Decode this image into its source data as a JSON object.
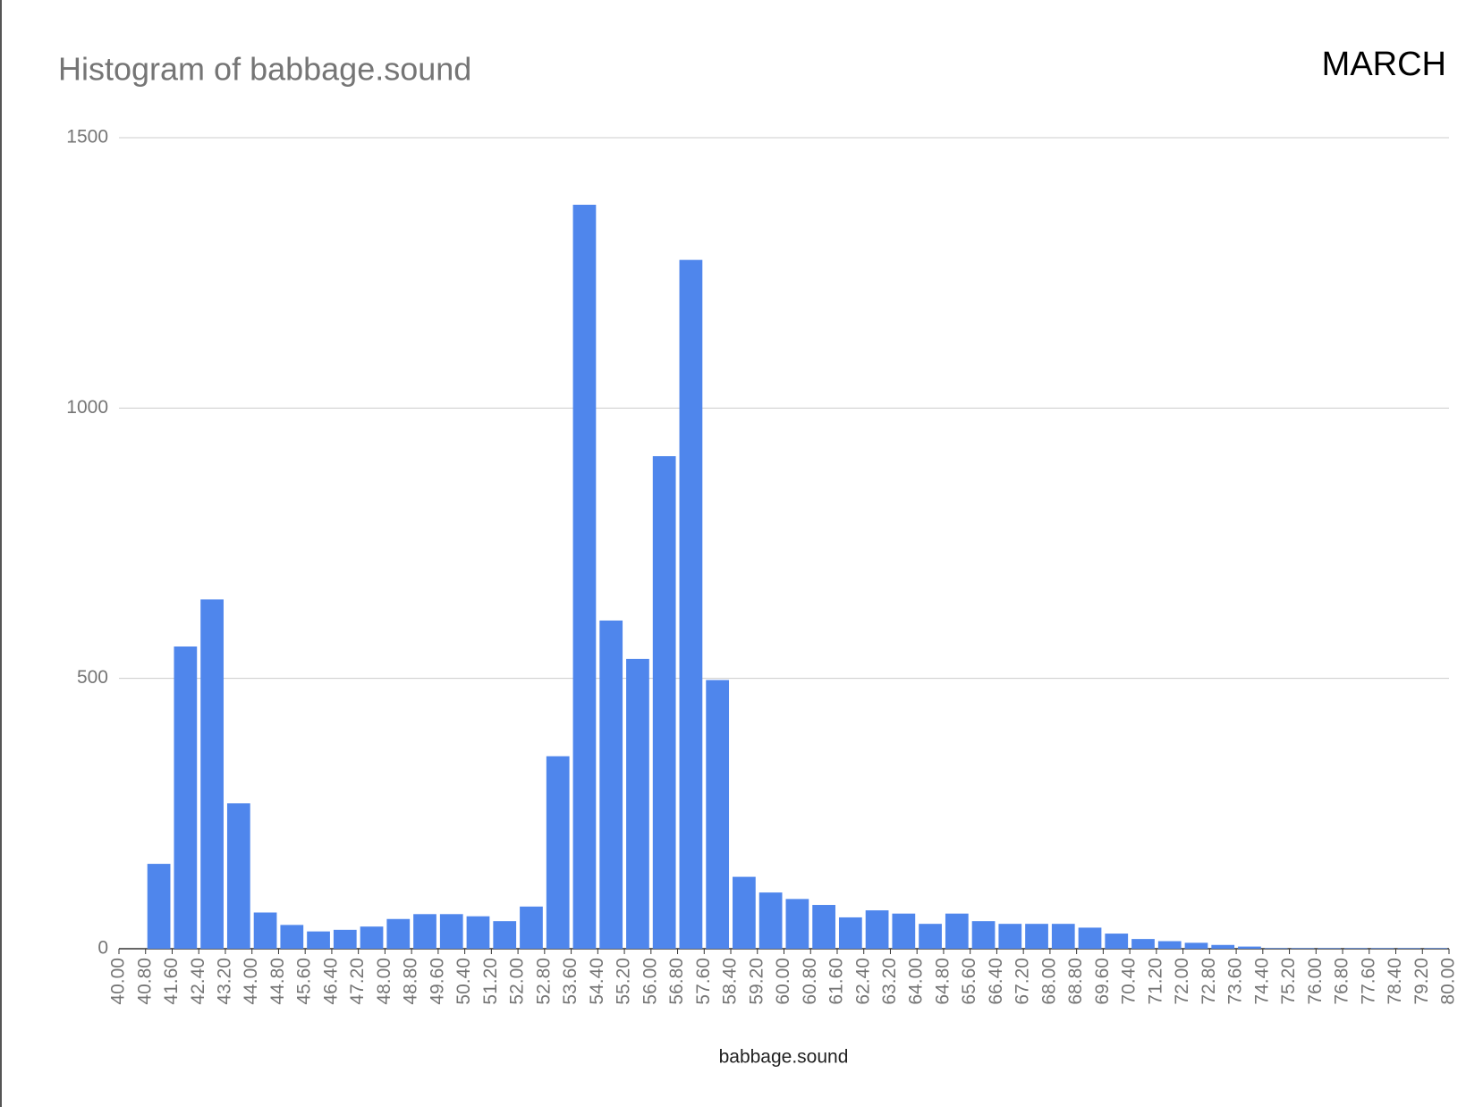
{
  "chart_data": {
    "type": "histogram",
    "title": "Histogram of babbage.sound",
    "subtitle": "MARCH",
    "x_label": "babbage.sound",
    "color": "#4f86ec",
    "grid": true,
    "bins": [
      40.0,
      40.8,
      41.6,
      42.4,
      43.2,
      44.0,
      44.8,
      45.6,
      46.4,
      47.2,
      48.0,
      48.8,
      49.6,
      50.4,
      51.2,
      52.0,
      52.8,
      53.6,
      54.4,
      55.2,
      56.0,
      56.8,
      57.6,
      58.4,
      59.2,
      60.0,
      60.8,
      61.6,
      62.4,
      63.2,
      64.0,
      64.8,
      65.6,
      66.4,
      67.2,
      68.0,
      68.8,
      69.6,
      70.4,
      71.2,
      72.0,
      72.8,
      73.6,
      74.4,
      75.2,
      76.0,
      76.8,
      77.6,
      78.4,
      79.2,
      80.0
    ],
    "values": [
      0,
      157,
      559,
      646,
      269,
      67,
      44,
      32,
      35,
      41,
      55,
      64,
      64,
      60,
      51,
      78,
      356,
      1376,
      607,
      536,
      911,
      1274,
      497,
      133,
      104,
      92,
      81,
      58,
      71,
      65,
      46,
      65,
      51,
      46,
      46,
      46,
      39,
      28,
      18,
      14,
      11,
      7,
      4,
      1,
      1,
      1,
      1,
      1,
      1,
      1
    ],
    "xlim": [
      40,
      80
    ],
    "xticks": [
      {
        "value": 40.0,
        "label": "40.00"
      },
      {
        "value": 40.8,
        "label": "40.80"
      },
      {
        "value": 41.6,
        "label": "41.60"
      },
      {
        "value": 42.4,
        "label": "42.40"
      },
      {
        "value": 43.2,
        "label": "43.20"
      },
      {
        "value": 44.0,
        "label": "44.00"
      },
      {
        "value": 44.8,
        "label": "44.80"
      },
      {
        "value": 45.6,
        "label": "45.60"
      },
      {
        "value": 46.4,
        "label": "46.40"
      },
      {
        "value": 47.2,
        "label": "47.20"
      },
      {
        "value": 48.0,
        "label": "48.00"
      },
      {
        "value": 48.8,
        "label": "48.80"
      },
      {
        "value": 49.6,
        "label": "49.60"
      },
      {
        "value": 50.4,
        "label": "50.40"
      },
      {
        "value": 51.2,
        "label": "51.20"
      },
      {
        "value": 52.0,
        "label": "52.00"
      },
      {
        "value": 52.8,
        "label": "52.80"
      },
      {
        "value": 53.6,
        "label": "53.60"
      },
      {
        "value": 54.4,
        "label": "54.40"
      },
      {
        "value": 55.2,
        "label": "55.20"
      },
      {
        "value": 56.0,
        "label": "56.00"
      },
      {
        "value": 56.8,
        "label": "56.80"
      },
      {
        "value": 57.6,
        "label": "57.60"
      },
      {
        "value": 58.4,
        "label": "58.40"
      },
      {
        "value": 59.2,
        "label": "59.20"
      },
      {
        "value": 60.0,
        "label": "60.00"
      },
      {
        "value": 60.8,
        "label": "60.80"
      },
      {
        "value": 61.6,
        "label": "61.60"
      },
      {
        "value": 62.4,
        "label": "62.40"
      },
      {
        "value": 63.2,
        "label": "63.20"
      },
      {
        "value": 64.0,
        "label": "64.00"
      },
      {
        "value": 64.8,
        "label": "64.80"
      },
      {
        "value": 65.6,
        "label": "65.60"
      },
      {
        "value": 66.4,
        "label": "66.40"
      },
      {
        "value": 67.2,
        "label": "67.20"
      },
      {
        "value": 68.0,
        "label": "68.00"
      },
      {
        "value": 68.8,
        "label": "68.80"
      },
      {
        "value": 69.6,
        "label": "69.60"
      },
      {
        "value": 70.4,
        "label": "70.40"
      },
      {
        "value": 71.2,
        "label": "71.20"
      },
      {
        "value": 72.0,
        "label": "72.00"
      },
      {
        "value": 72.8,
        "label": "72.80"
      },
      {
        "value": 73.6,
        "label": "73.60"
      },
      {
        "value": 74.4,
        "label": "74.40"
      },
      {
        "value": 75.2,
        "label": "75.20"
      },
      {
        "value": 76.0,
        "label": "76.00"
      },
      {
        "value": 76.8,
        "label": "76.80"
      },
      {
        "value": 77.6,
        "label": "77.60"
      },
      {
        "value": 78.4,
        "label": "78.40"
      },
      {
        "value": 79.2,
        "label": "79.20"
      },
      {
        "value": 80.0,
        "label": "80.00"
      }
    ],
    "ylim": [
      0,
      1500
    ],
    "yticks": [
      0,
      500,
      1000,
      1500
    ]
  }
}
